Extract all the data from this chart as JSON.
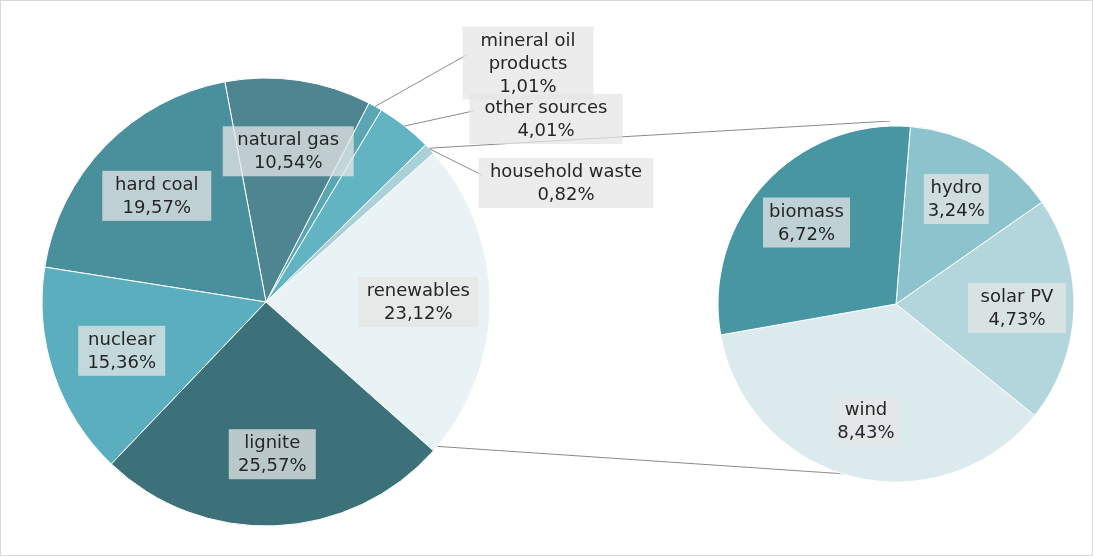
{
  "chart_data": [
    {
      "type": "pie",
      "categories": [
        "renewables",
        "household waste",
        "other sources",
        "mineral oil products",
        "natural gas",
        "hard coal",
        "nuclear",
        "lignite"
      ],
      "values": [
        23.12,
        0.82,
        4.01,
        1.01,
        10.54,
        19.57,
        15.36,
        25.57
      ],
      "value_labels": [
        "23,12%",
        "0,82%",
        "4,01%",
        "1,01%",
        "10,54%",
        "19,57%",
        "15,36%",
        "25,57%"
      ],
      "colors": [
        "#e9f2f4",
        "#a9d1d7",
        "#62b4c2",
        "#5aa7b3",
        "#4e8590",
        "#4a8f9c",
        "#5aaebd",
        "#3d7179"
      ],
      "legend": false
    },
    {
      "type": "pie",
      "categories": [
        "wind",
        "solar PV",
        "hydro",
        "biomass"
      ],
      "values": [
        8.43,
        4.73,
        3.24,
        6.72
      ],
      "value_labels": [
        "8,43%",
        "4,73%",
        "3,24%",
        "6,72%"
      ],
      "colors": [
        "#dbeaed",
        "#b3d6dc",
        "#8cc3cc",
        "#4996a3"
      ],
      "legend": false
    }
  ]
}
